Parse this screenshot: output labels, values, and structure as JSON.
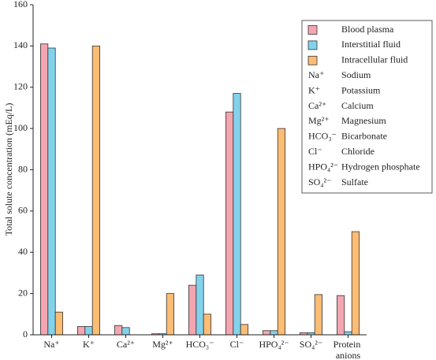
{
  "chart_data": {
    "type": "bar",
    "y_label": "Total solute concentration (mEq/L)",
    "categories": [
      "Na⁺",
      "K⁺",
      "Ca²⁺",
      "Mg²⁺",
      "HCO₃⁻",
      "Cl⁻",
      "HPO₄²⁻",
      "SO₄²⁻",
      "Protein anions"
    ],
    "series": [
      {
        "name": "Blood plasma",
        "color": "#f4a6b0",
        "values": [
          141,
          4,
          4.5,
          0.5,
          24,
          108,
          2,
          1,
          19
        ]
      },
      {
        "name": "Interstitial fluid",
        "color": "#82d2ea",
        "values": [
          139,
          4,
          3.5,
          0.5,
          29,
          117,
          2,
          1,
          1.5
        ]
      },
      {
        "name": "Intracellular fluid",
        "color": "#fbbd74",
        "values": [
          11,
          140,
          0,
          20,
          10,
          5,
          100,
          19.5,
          50
        ]
      }
    ],
    "legend_ions": [
      {
        "symbol": "Na⁺",
        "name": "Sodium"
      },
      {
        "symbol": "K⁺",
        "name": "Potassium"
      },
      {
        "symbol": "Ca²⁺",
        "name": "Calcium"
      },
      {
        "symbol": "Mg²⁺",
        "name": "Magnesium"
      },
      {
        "symbol": "HCO₃⁻",
        "name": "Bicarbonate"
      },
      {
        "symbol": "Cl⁻",
        "name": "Chloride"
      },
      {
        "symbol": "HPO₄²⁻",
        "name": "Hydrogen phosphate"
      },
      {
        "symbol": "SO₄²⁻",
        "name": "Sulfate"
      }
    ],
    "ylim": [
      0,
      160
    ],
    "yticks": [
      0,
      20,
      40,
      60,
      80,
      100,
      120,
      140,
      160
    ],
    "legend": "upper right"
  }
}
